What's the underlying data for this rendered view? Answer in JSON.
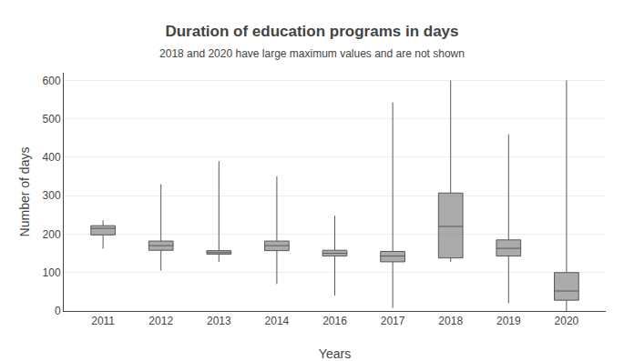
{
  "chart_data": {
    "type": "box",
    "title": "Duration of education programs in days",
    "subtitle": "2018 and 2020 have large maximum values and are not shown",
    "xlabel": "Years",
    "ylabel": "Number of days",
    "categories": [
      "2011",
      "2012",
      "2013",
      "2014",
      "2016",
      "2017",
      "2018",
      "2019",
      "2020"
    ],
    "whislo": [
      162,
      105,
      128,
      70,
      40,
      8,
      128,
      20,
      0
    ],
    "q1": [
      198,
      158,
      148,
      157,
      143,
      128,
      138,
      143,
      28
    ],
    "median": [
      215,
      170,
      152,
      170,
      150,
      143,
      220,
      163,
      52
    ],
    "q3": [
      222,
      182,
      157,
      182,
      158,
      155,
      307,
      185,
      100
    ],
    "whishi": [
      236,
      330,
      390,
      350,
      248,
      543,
      600,
      460,
      600
    ],
    "color": "#585858",
    "ylim": [
      0,
      620
    ],
    "yticks": [
      0,
      100,
      200,
      300,
      400,
      500,
      600
    ],
    "grid": true
  }
}
